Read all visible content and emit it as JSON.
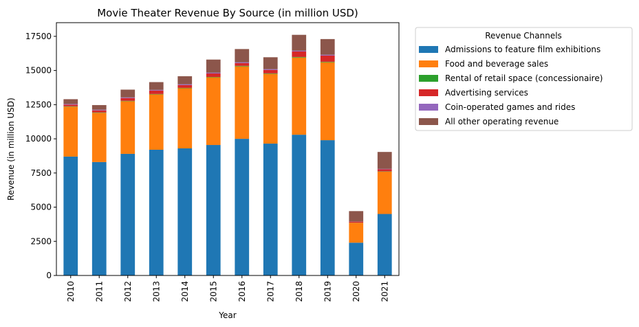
{
  "chart_data": {
    "type": "bar",
    "stacked": true,
    "title": "Movie Theater Revenue By Source (in million USD)",
    "xlabel": "Year",
    "ylabel": "Revenue (in million USD)",
    "categories": [
      "2010",
      "2011",
      "2012",
      "2013",
      "2014",
      "2015",
      "2016",
      "2017",
      "2018",
      "2019",
      "2020",
      "2021"
    ],
    "ylim": [
      0,
      18500
    ],
    "yticks": [
      0,
      2500,
      5000,
      7500,
      10000,
      12500,
      15000,
      17500
    ],
    "ytick_labels": [
      "0",
      "2500",
      "5000",
      "7500",
      "10000",
      "12500",
      "15000",
      "17500"
    ],
    "grid": false,
    "legend": {
      "title": "Revenue Channels",
      "placement": "outside upper-right"
    },
    "series": [
      {
        "name": "Admissions to feature film exhibitions",
        "color": "#1f77b4",
        "values": [
          8700,
          8300,
          8900,
          9200,
          9300,
          9550,
          10000,
          9650,
          10300,
          9900,
          2400,
          4500
        ]
      },
      {
        "name": "Food and beverage sales",
        "color": "#ff7f0e",
        "values": [
          3650,
          3600,
          3850,
          4050,
          4400,
          4950,
          5300,
          5100,
          5650,
          5700,
          1450,
          3100
        ]
      },
      {
        "name": "Rental of retail space (concessionaire)",
        "color": "#2ca02c",
        "values": [
          30,
          30,
          30,
          30,
          30,
          30,
          40,
          40,
          40,
          40,
          10,
          20
        ]
      },
      {
        "name": "Advertising services",
        "color": "#d62728",
        "values": [
          120,
          150,
          200,
          250,
          200,
          250,
          200,
          250,
          400,
          450,
          80,
          150
        ]
      },
      {
        "name": "Coin-operated games and rides",
        "color": "#9467bd",
        "values": [
          50,
          50,
          50,
          50,
          60,
          60,
          60,
          60,
          60,
          60,
          10,
          30
        ]
      },
      {
        "name": "All other operating revenue",
        "color": "#8c564b",
        "values": [
          350,
          340,
          570,
          570,
          590,
          960,
          970,
          870,
          1160,
          1150,
          760,
          1240
        ]
      }
    ]
  }
}
